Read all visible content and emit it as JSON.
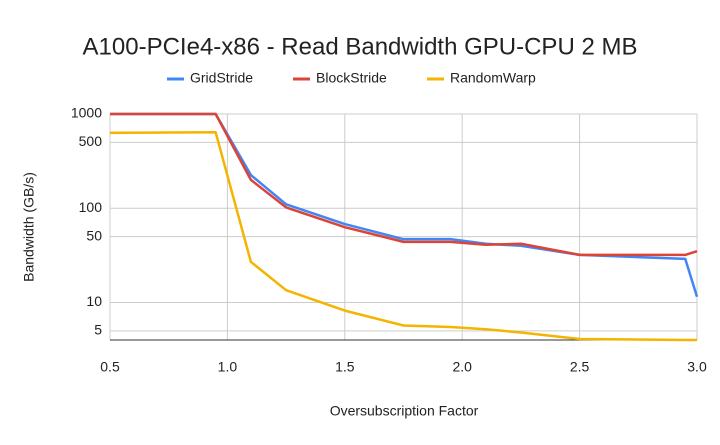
{
  "chart_data": {
    "type": "line",
    "title": "A100-PCIe4-x86 - Read Bandwidth GPU-CPU 2 MB",
    "x_label": "Oversubscription Factor",
    "y_label": "Bandwidth (GB/s)",
    "x": [
      0.5,
      0.95,
      1.1,
      1.25,
      1.5,
      1.75,
      1.95,
      2.1,
      2.25,
      2.5,
      2.95,
      3.0
    ],
    "series": [
      {
        "name": "GridStride",
        "color": "#4285f4",
        "values": [
          1000,
          1000,
          225,
          110,
          68,
          47,
          47,
          42,
          40,
          32,
          29,
          11.5
        ]
      },
      {
        "name": "BlockStride",
        "color": "#db4437",
        "values": [
          1000,
          1000,
          200,
          102,
          63,
          44,
          44,
          41,
          42,
          32,
          32,
          35
        ]
      },
      {
        "name": "RandomWarp",
        "color": "#f4b400",
        "values": [
          630,
          640,
          27,
          13.5,
          8.2,
          5.7,
          5.5,
          5.2,
          4.8,
          4.1,
          4.0,
          4.0
        ]
      }
    ],
    "xlim": [
      0.5,
      3.0
    ],
    "xticks": [
      {
        "value": 0.5,
        "label": "0.5"
      },
      {
        "value": 1.0,
        "label": "1.0"
      },
      {
        "value": 1.5,
        "label": "1.5"
      },
      {
        "value": 2.0,
        "label": "2.0"
      },
      {
        "value": 2.5,
        "label": "2.5"
      },
      {
        "value": 3.0,
        "label": "3.0"
      }
    ],
    "ylim": [
      4,
      1000
    ],
    "yticks": [
      5,
      10,
      50,
      100,
      500,
      1000
    ],
    "y_scale": "log",
    "grid": true,
    "legend": "top"
  }
}
